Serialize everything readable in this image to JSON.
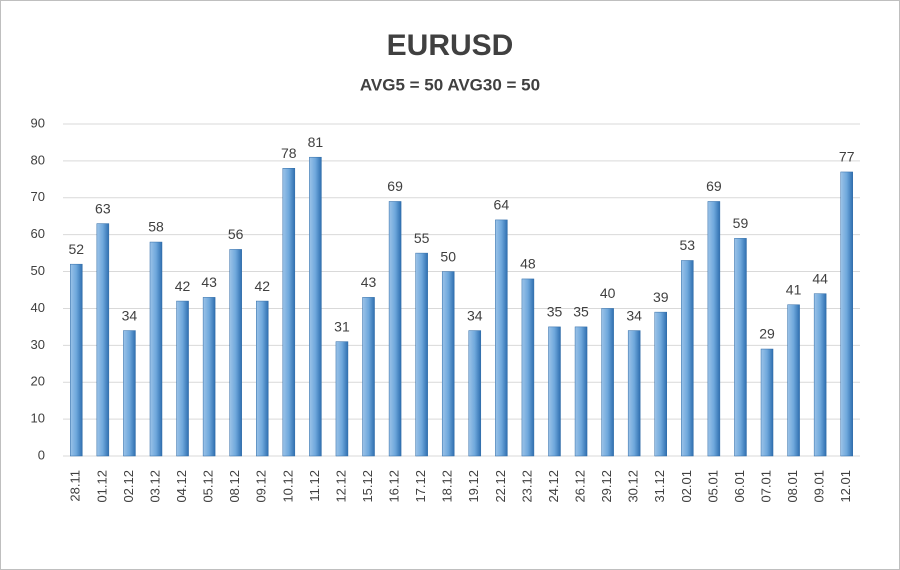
{
  "chart_data": {
    "type": "bar",
    "title": "EURUSD",
    "subtitle": "AVG5 = 50 AVG30 = 50",
    "categories": [
      "28.11",
      "01.12",
      "02.12",
      "03.12",
      "04.12",
      "05.12",
      "08.12",
      "09.12",
      "10.12",
      "11.12",
      "12.12",
      "15.12",
      "16.12",
      "17.12",
      "18.12",
      "19.12",
      "22.12",
      "23.12",
      "24.12",
      "26.12",
      "29.12",
      "30.12",
      "31.12",
      "02.01",
      "05.01",
      "06.01",
      "07.01",
      "08.01",
      "09.01",
      "12.01"
    ],
    "values": [
      52,
      63,
      34,
      58,
      42,
      43,
      56,
      42,
      78,
      81,
      31,
      43,
      69,
      55,
      50,
      34,
      64,
      48,
      35,
      35,
      40,
      34,
      39,
      53,
      69,
      59,
      29,
      41,
      44,
      77
    ],
    "color": "#5b9bd5",
    "ylim": [
      0,
      90
    ],
    "yticks": [
      0,
      10,
      20,
      30,
      40,
      50,
      60,
      70,
      80,
      90
    ],
    "grid": true
  }
}
